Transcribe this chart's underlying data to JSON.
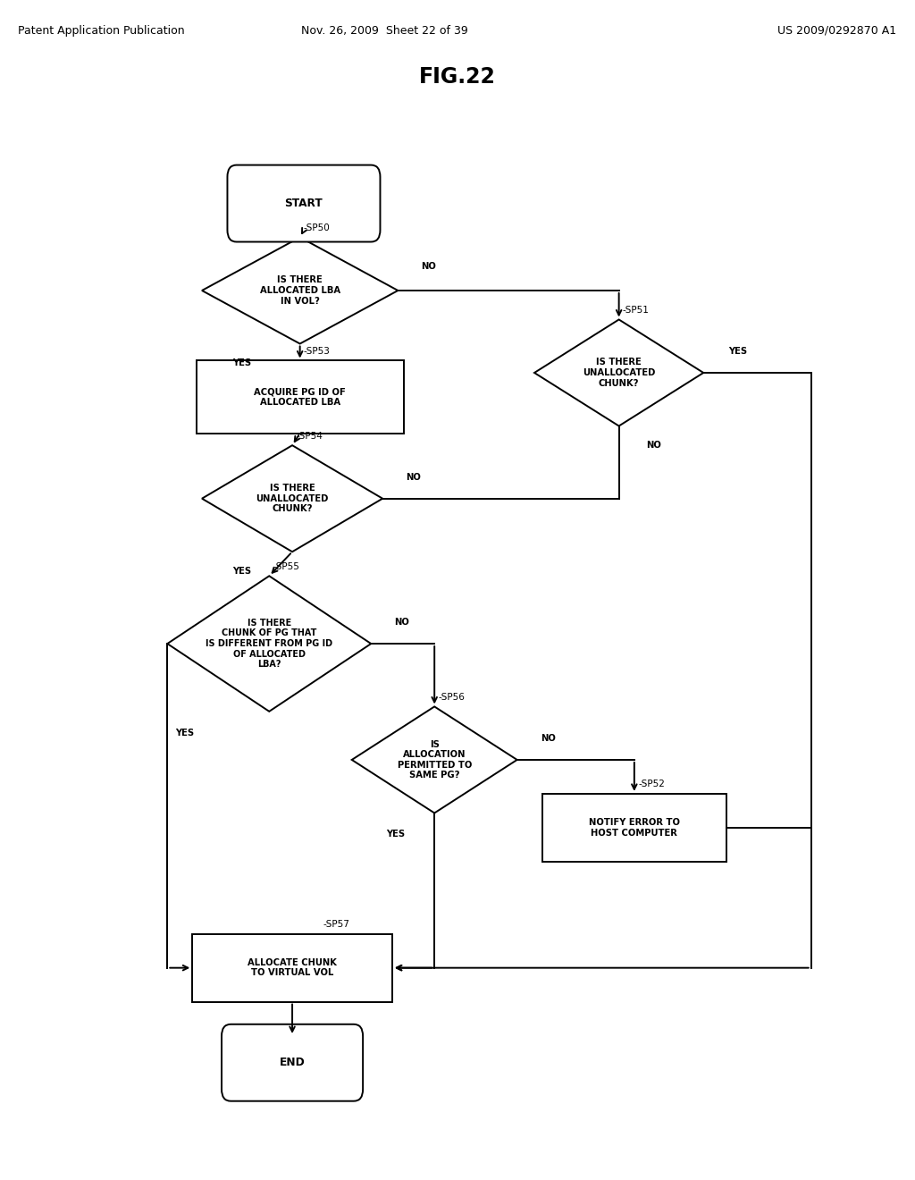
{
  "title": "FIG.22",
  "header_left": "Patent Application Publication",
  "header_mid": "Nov. 26, 2009  Sheet 22 of 39",
  "header_right": "US 2009/0292870 A1",
  "bg_color": "#ffffff",
  "line_color": "#000000",
  "line_width": 1.4,
  "font_size_node": 7.2,
  "font_size_tag": 7.5,
  "font_size_header": 9.0,
  "font_size_title": 17
}
